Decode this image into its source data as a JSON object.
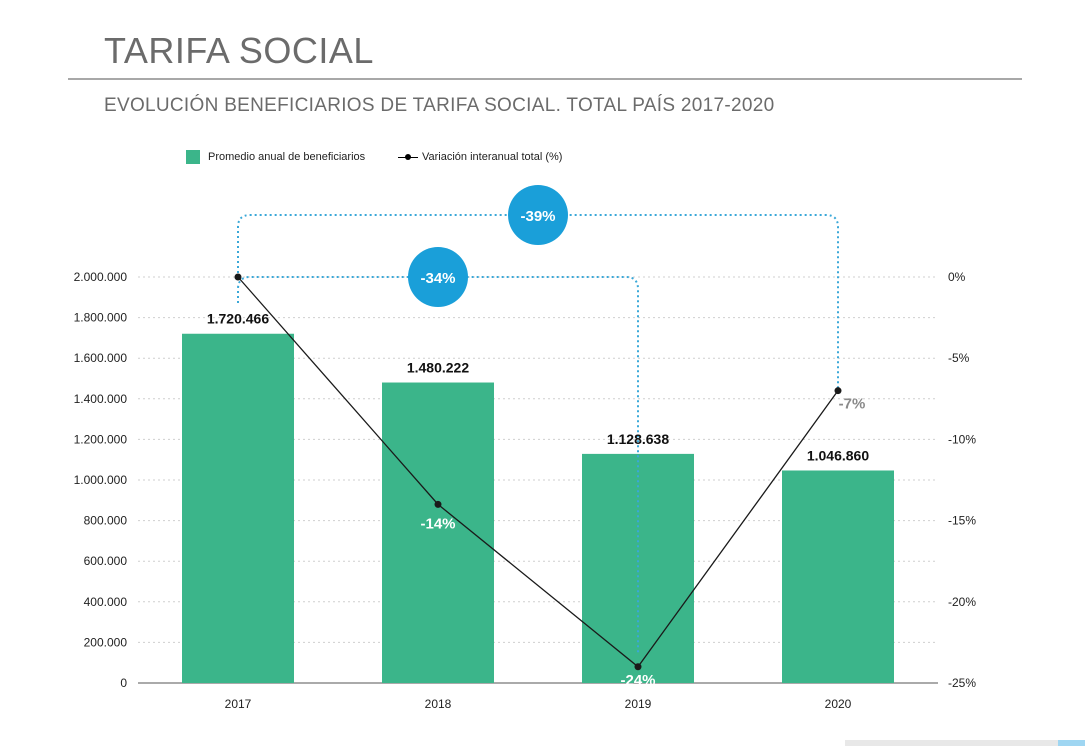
{
  "page": {
    "title": "TARIFA SOCIAL",
    "subtitle": "EVOLUCIÓN BENEFICIARIOS DE TARIFA SOCIAL. TOTAL PAÍS 2017-2020"
  },
  "legend": {
    "bars_label": "Promedio anual de beneficiarios",
    "line_label": "Variación interanual total (%)"
  },
  "colors": {
    "bar": "#3bb58a",
    "line": "#1a1a1a",
    "bubble": "#1a9fd9",
    "bracket": "#3aa8d8"
  },
  "chart_data": {
    "type": "bar",
    "categories": [
      "2017",
      "2018",
      "2019",
      "2020"
    ],
    "series": [
      {
        "name": "Promedio anual de beneficiarios",
        "type": "bar",
        "axis": "left",
        "values": [
          1720466,
          1480222,
          1128638,
          1046860
        ],
        "labels": [
          "1.720.466",
          "1.480.222",
          "1.128.638",
          "1.046.860"
        ]
      },
      {
        "name": "Variación interanual total (%)",
        "type": "line",
        "axis": "right",
        "values": [
          0,
          -14,
          -24,
          -7
        ],
        "labels": [
          "",
          "-14%",
          "-24%",
          "-7%"
        ]
      }
    ],
    "ylim_left": [
      0,
      2000000
    ],
    "yticks_left": [
      "0",
      "200.000",
      "400.000",
      "600.000",
      "800.000",
      "1.000.000",
      "1.200.000",
      "1.400.000",
      "1.600.000",
      "1.800.000",
      "2.000.000"
    ],
    "ylim_right": [
      -25,
      0
    ],
    "yticks_right": [
      "-25%",
      "-20%",
      "-15%",
      "-10%",
      "-5%",
      "0%"
    ],
    "grid": true,
    "legend_position": "top-left",
    "annotations": [
      {
        "label": "-34%",
        "from": "2017",
        "to": "2019"
      },
      {
        "label": "-39%",
        "from": "2017",
        "to": "2020"
      }
    ]
  }
}
